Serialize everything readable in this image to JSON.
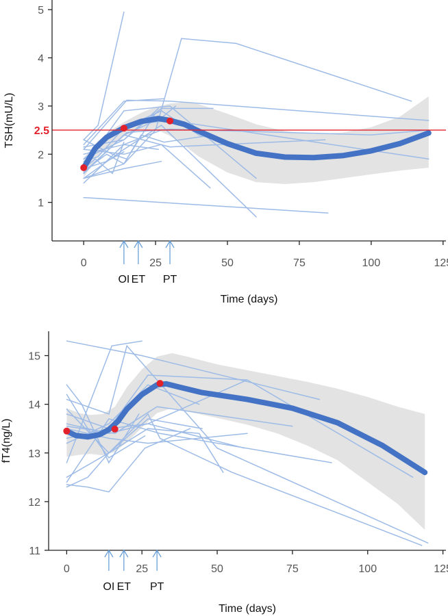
{
  "colors": {
    "individual": "#9dbbe6",
    "fit": "#4472c4",
    "band": "#e3e3e3",
    "point": "#e3212b",
    "reference": "#e3212b",
    "arrow": "#6aa0d8"
  },
  "chart_data": [
    {
      "type": "line",
      "title": "",
      "xlabel": "Time (days)",
      "ylabel": "TSH(mU/L)",
      "xlim": [
        -11,
        126
      ],
      "ylim": [
        0.2,
        5.2
      ],
      "x_ticks": [
        0,
        25,
        50,
        75,
        100,
        125
      ],
      "y_ticks": [
        1,
        2,
        3,
        4,
        5
      ],
      "grid": false,
      "reference_line": {
        "y": 2.5,
        "label": "2.5"
      },
      "events": [
        {
          "label": "OI",
          "x": 14
        },
        {
          "label": "ET",
          "x": 19
        },
        {
          "label": "PT",
          "x": 30
        }
      ],
      "fit": {
        "x": [
          0,
          4,
          8,
          14,
          20,
          26,
          30,
          35,
          40,
          50,
          60,
          70,
          80,
          90,
          100,
          110,
          120
        ],
        "y": [
          1.72,
          2.12,
          2.35,
          2.55,
          2.68,
          2.74,
          2.7,
          2.62,
          2.48,
          2.22,
          2.02,
          1.94,
          1.93,
          1.97,
          2.07,
          2.22,
          2.44
        ]
      },
      "band": {
        "x": [
          0,
          5,
          10,
          15,
          20,
          25,
          30,
          35,
          40,
          50,
          60,
          70,
          80,
          90,
          100,
          110,
          120
        ],
        "upper": [
          1.92,
          2.28,
          2.52,
          2.7,
          2.86,
          2.98,
          3.05,
          3.08,
          3.04,
          2.84,
          2.62,
          2.48,
          2.42,
          2.45,
          2.56,
          2.78,
          3.2
        ],
        "lower": [
          1.52,
          1.96,
          2.2,
          2.4,
          2.5,
          2.52,
          2.38,
          2.18,
          1.95,
          1.62,
          1.42,
          1.38,
          1.42,
          1.5,
          1.58,
          1.66,
          1.72
        ]
      },
      "points": [
        {
          "x": 0,
          "y": 1.72
        },
        {
          "x": 14,
          "y": 2.54
        },
        {
          "x": 30,
          "y": 2.69
        }
      ],
      "individual_series": [
        {
          "x": [
            0,
            14,
            27,
            32
          ],
          "y": [
            1.6,
            2.4,
            2.75,
            3.0
          ]
        },
        {
          "x": [
            0,
            14,
            28
          ],
          "y": [
            2.2,
            3.1,
            3.15
          ]
        },
        {
          "x": [
            0,
            5,
            14
          ],
          "y": [
            2.3,
            2.6,
            4.95
          ]
        },
        {
          "x": [
            0,
            14,
            27,
            60
          ],
          "y": [
            1.5,
            2.1,
            2.6,
            0.7
          ]
        },
        {
          "x": [
            0,
            14,
            25,
            34,
            53,
            114
          ],
          "y": [
            1.5,
            1.8,
            2.5,
            4.4,
            4.3,
            3.1
          ]
        },
        {
          "x": [
            0,
            15,
            30,
            120
          ],
          "y": [
            2.1,
            3.12,
            3.1,
            2.7
          ]
        },
        {
          "x": [
            0,
            14,
            30,
            120
          ],
          "y": [
            1.9,
            2.6,
            2.7,
            1.9
          ]
        },
        {
          "x": [
            0,
            14,
            30,
            60
          ],
          "y": [
            1.75,
            2.9,
            3.0,
            1.5
          ]
        },
        {
          "x": [
            0,
            14,
            27,
            44
          ],
          "y": [
            2.1,
            2.0,
            2.2,
            1.3
          ]
        },
        {
          "x": [
            0,
            14,
            30,
            84
          ],
          "y": [
            1.6,
            2.4,
            2.15,
            2.3
          ]
        },
        {
          "x": [
            0,
            85
          ],
          "y": [
            1.1,
            0.78
          ]
        },
        {
          "x": [
            0,
            14,
            27
          ],
          "y": [
            1.4,
            2.2,
            2.5
          ]
        },
        {
          "x": [
            0,
            8,
            14,
            20,
            28,
            45
          ],
          "y": [
            1.65,
            2.0,
            1.8,
            2.4,
            2.25,
            2.4
          ]
        },
        {
          "x": [
            0,
            14,
            27,
            45
          ],
          "y": [
            1.9,
            2.3,
            2.95,
            2.95
          ]
        },
        {
          "x": [
            0,
            10,
            15,
            25
          ],
          "y": [
            2.3,
            2.0,
            1.9,
            2.85
          ]
        },
        {
          "x": [
            0,
            14,
            26
          ],
          "y": [
            2.15,
            2.3,
            2.95
          ]
        },
        {
          "x": [
            0,
            8,
            14
          ],
          "y": [
            1.7,
            1.85,
            2.05
          ]
        },
        {
          "x": [
            0,
            5,
            14,
            27,
            40,
            60
          ],
          "y": [
            1.85,
            1.95,
            2.55,
            2.9,
            2.4,
            2.05
          ]
        },
        {
          "x": [
            0,
            4,
            10,
            14
          ],
          "y": [
            1.7,
            1.9,
            1.6,
            2.25
          ]
        },
        {
          "x": [
            0,
            14,
            26
          ],
          "y": [
            2.0,
            2.2,
            2.1
          ]
        },
        {
          "x": [
            0,
            14,
            27
          ],
          "y": [
            1.5,
            1.7,
            1.85
          ]
        },
        {
          "x": [
            0,
            15,
            30,
            100,
            120
          ],
          "y": [
            1.62,
            2.45,
            2.52,
            2.4,
            2.5
          ]
        }
      ]
    },
    {
      "type": "line",
      "title": "",
      "xlabel": "Time (days)",
      "ylabel": "fT4(ng/L)",
      "xlim": [
        -6,
        126
      ],
      "ylim": [
        11,
        15.5
      ],
      "x_ticks": [
        0,
        25,
        50,
        75,
        100,
        125
      ],
      "y_ticks": [
        11,
        12,
        13,
        14,
        15
      ],
      "grid": false,
      "events": [
        {
          "label": "OI",
          "x": 14
        },
        {
          "label": "ET",
          "x": 19
        },
        {
          "label": "PT",
          "x": 30
        }
      ],
      "fit": {
        "x": [
          0,
          3,
          7,
          11,
          14,
          17,
          20,
          25,
          30,
          33,
          37,
          45,
          60,
          75,
          90,
          105,
          119
        ],
        "y": [
          13.45,
          13.36,
          13.33,
          13.38,
          13.48,
          13.65,
          13.9,
          14.2,
          14.4,
          14.42,
          14.36,
          14.24,
          14.1,
          13.92,
          13.62,
          13.15,
          12.6
        ]
      },
      "band": {
        "x": [
          0,
          4,
          8,
          12,
          16,
          20,
          25,
          30,
          35,
          40,
          50,
          60,
          70,
          80,
          90,
          100,
          110,
          119
        ],
        "upper": [
          13.92,
          13.82,
          13.78,
          13.8,
          13.95,
          14.35,
          14.72,
          14.98,
          15.05,
          14.98,
          14.82,
          14.7,
          14.58,
          14.46,
          14.32,
          14.15,
          13.95,
          13.8
        ],
        "lower": [
          12.92,
          12.96,
          12.98,
          12.95,
          13.02,
          13.22,
          13.52,
          13.82,
          13.92,
          13.85,
          13.72,
          13.58,
          13.4,
          13.15,
          12.85,
          12.4,
          11.95,
          11.42
        ]
      },
      "points": [
        {
          "x": 0,
          "y": 13.45
        },
        {
          "x": 16,
          "y": 13.49
        },
        {
          "x": 31,
          "y": 14.43
        }
      ],
      "individual_series": [
        {
          "x": [
            0,
            25,
            84
          ],
          "y": [
            15.3,
            15.0,
            14.1
          ]
        },
        {
          "x": [
            0,
            14,
            20,
            50,
            120
          ],
          "y": [
            14.1,
            13.8,
            15.2,
            13.1,
            11.15
          ]
        },
        {
          "x": [
            0,
            14,
            27,
            60,
            115
          ],
          "y": [
            13.8,
            13.5,
            14.6,
            14.5,
            12.5
          ]
        },
        {
          "x": [
            0,
            14,
            31,
            88
          ],
          "y": [
            12.4,
            13.7,
            13.4,
            12.8
          ]
        },
        {
          "x": [
            0,
            7,
            14,
            27,
            31,
            55,
            118
          ],
          "y": [
            12.3,
            12.5,
            13.0,
            13.8,
            13.3,
            12.6,
            11.1
          ]
        },
        {
          "x": [
            0,
            14,
            27,
            60
          ],
          "y": [
            13.6,
            13.4,
            13.6,
            14.5
          ]
        },
        {
          "x": [
            0,
            14,
            27,
            45
          ],
          "y": [
            12.5,
            13.0,
            13.7,
            13.5
          ]
        },
        {
          "x": [
            0,
            14,
            27,
            44,
            52
          ],
          "y": [
            13.9,
            13.0,
            13.5,
            13.4,
            12.6
          ]
        },
        {
          "x": [
            0,
            14,
            27,
            60
          ],
          "y": [
            13.5,
            13.3,
            13.2,
            13.4
          ]
        },
        {
          "x": [
            0,
            7,
            14,
            26
          ],
          "y": [
            14.2,
            13.5,
            12.9,
            13.35
          ]
        },
        {
          "x": [
            0,
            7,
            14,
            26,
            41
          ],
          "y": [
            12.35,
            12.3,
            12.2,
            13.1,
            13.5
          ]
        },
        {
          "x": [
            0,
            14,
            27,
            59
          ],
          "y": [
            13.3,
            13.5,
            13.6,
            13.1
          ]
        },
        {
          "x": [
            0,
            15,
            25
          ],
          "y": [
            12.8,
            15.2,
            15.3
          ]
        },
        {
          "x": [
            0,
            5,
            14,
            24
          ],
          "y": [
            14.4,
            14.0,
            12.8,
            13.8
          ]
        },
        {
          "x": [
            0,
            14,
            27,
            44
          ],
          "y": [
            13.2,
            13.6,
            14.4,
            14.0
          ]
        },
        {
          "x": [
            0,
            16,
            30,
            75
          ],
          "y": [
            13.55,
            13.4,
            13.95,
            13.55
          ]
        }
      ]
    }
  ]
}
